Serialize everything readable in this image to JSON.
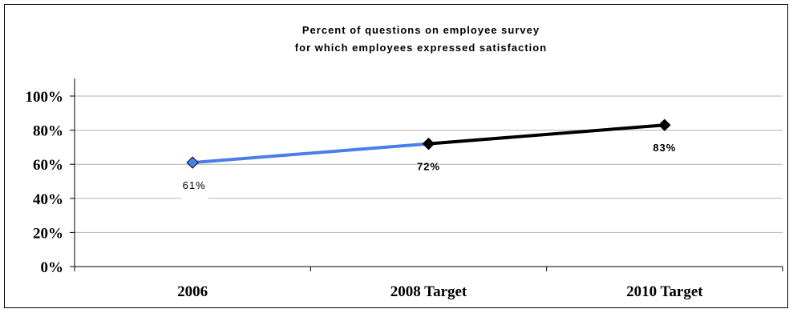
{
  "chart_data": {
    "type": "line",
    "title_lines": [
      "Percent of questions on employee survey",
      "for which employees expressed satisfaction"
    ],
    "categories": [
      "2006",
      "2008 Target",
      "2010 Target"
    ],
    "series": [
      {
        "values": [
          61,
          72,
          83
        ]
      }
    ],
    "data_labels": [
      "61%",
      "72%",
      "83%"
    ],
    "y_ticks": [
      "0%",
      "20%",
      "40%",
      "60%",
      "80%",
      "100%"
    ],
    "ylim": [
      0,
      100
    ],
    "grid": true,
    "segment_colors": [
      "#4a7fe8",
      "#000000"
    ],
    "marker_colors": [
      "#4a7fe8",
      "#000000",
      "#000000"
    ]
  }
}
